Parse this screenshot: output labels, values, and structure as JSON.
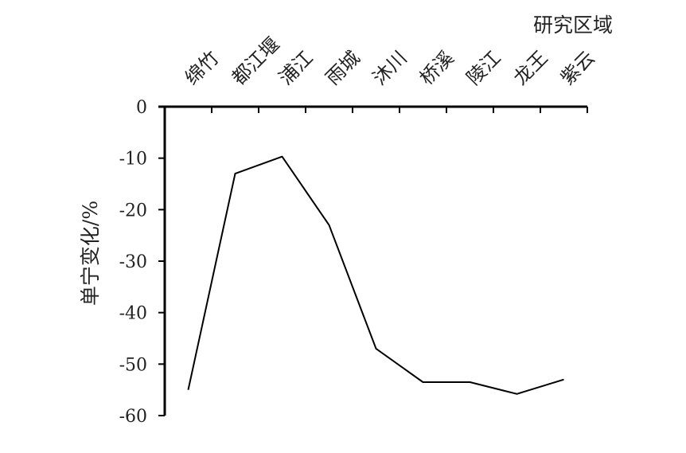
{
  "chart_data": {
    "type": "line",
    "xlabel": "研究区域",
    "ylabel": "单宁变化/%",
    "categories": [
      "绵竹",
      "都江堰",
      "浦江",
      "雨城",
      "沐川",
      "桥溪",
      "陵江",
      "龙王",
      "紫云"
    ],
    "series": [
      {
        "values": [
          -55,
          -13,
          -9.7,
          -23,
          -47,
          -53.5,
          -53.5,
          -55.8,
          -53
        ]
      }
    ],
    "ylim": [
      -60,
      0
    ],
    "yticks": [
      0,
      -10,
      -20,
      -30,
      -40,
      -50,
      -60
    ],
    "ytick_labels": [
      "0",
      "-10",
      "-20",
      "-30",
      "-40",
      "-50",
      "-60"
    ],
    "x_axis_position": "top",
    "grid": false,
    "legend": "none",
    "colors": {
      "line": "#000000",
      "axis": "#000000",
      "text": "#222222"
    }
  }
}
